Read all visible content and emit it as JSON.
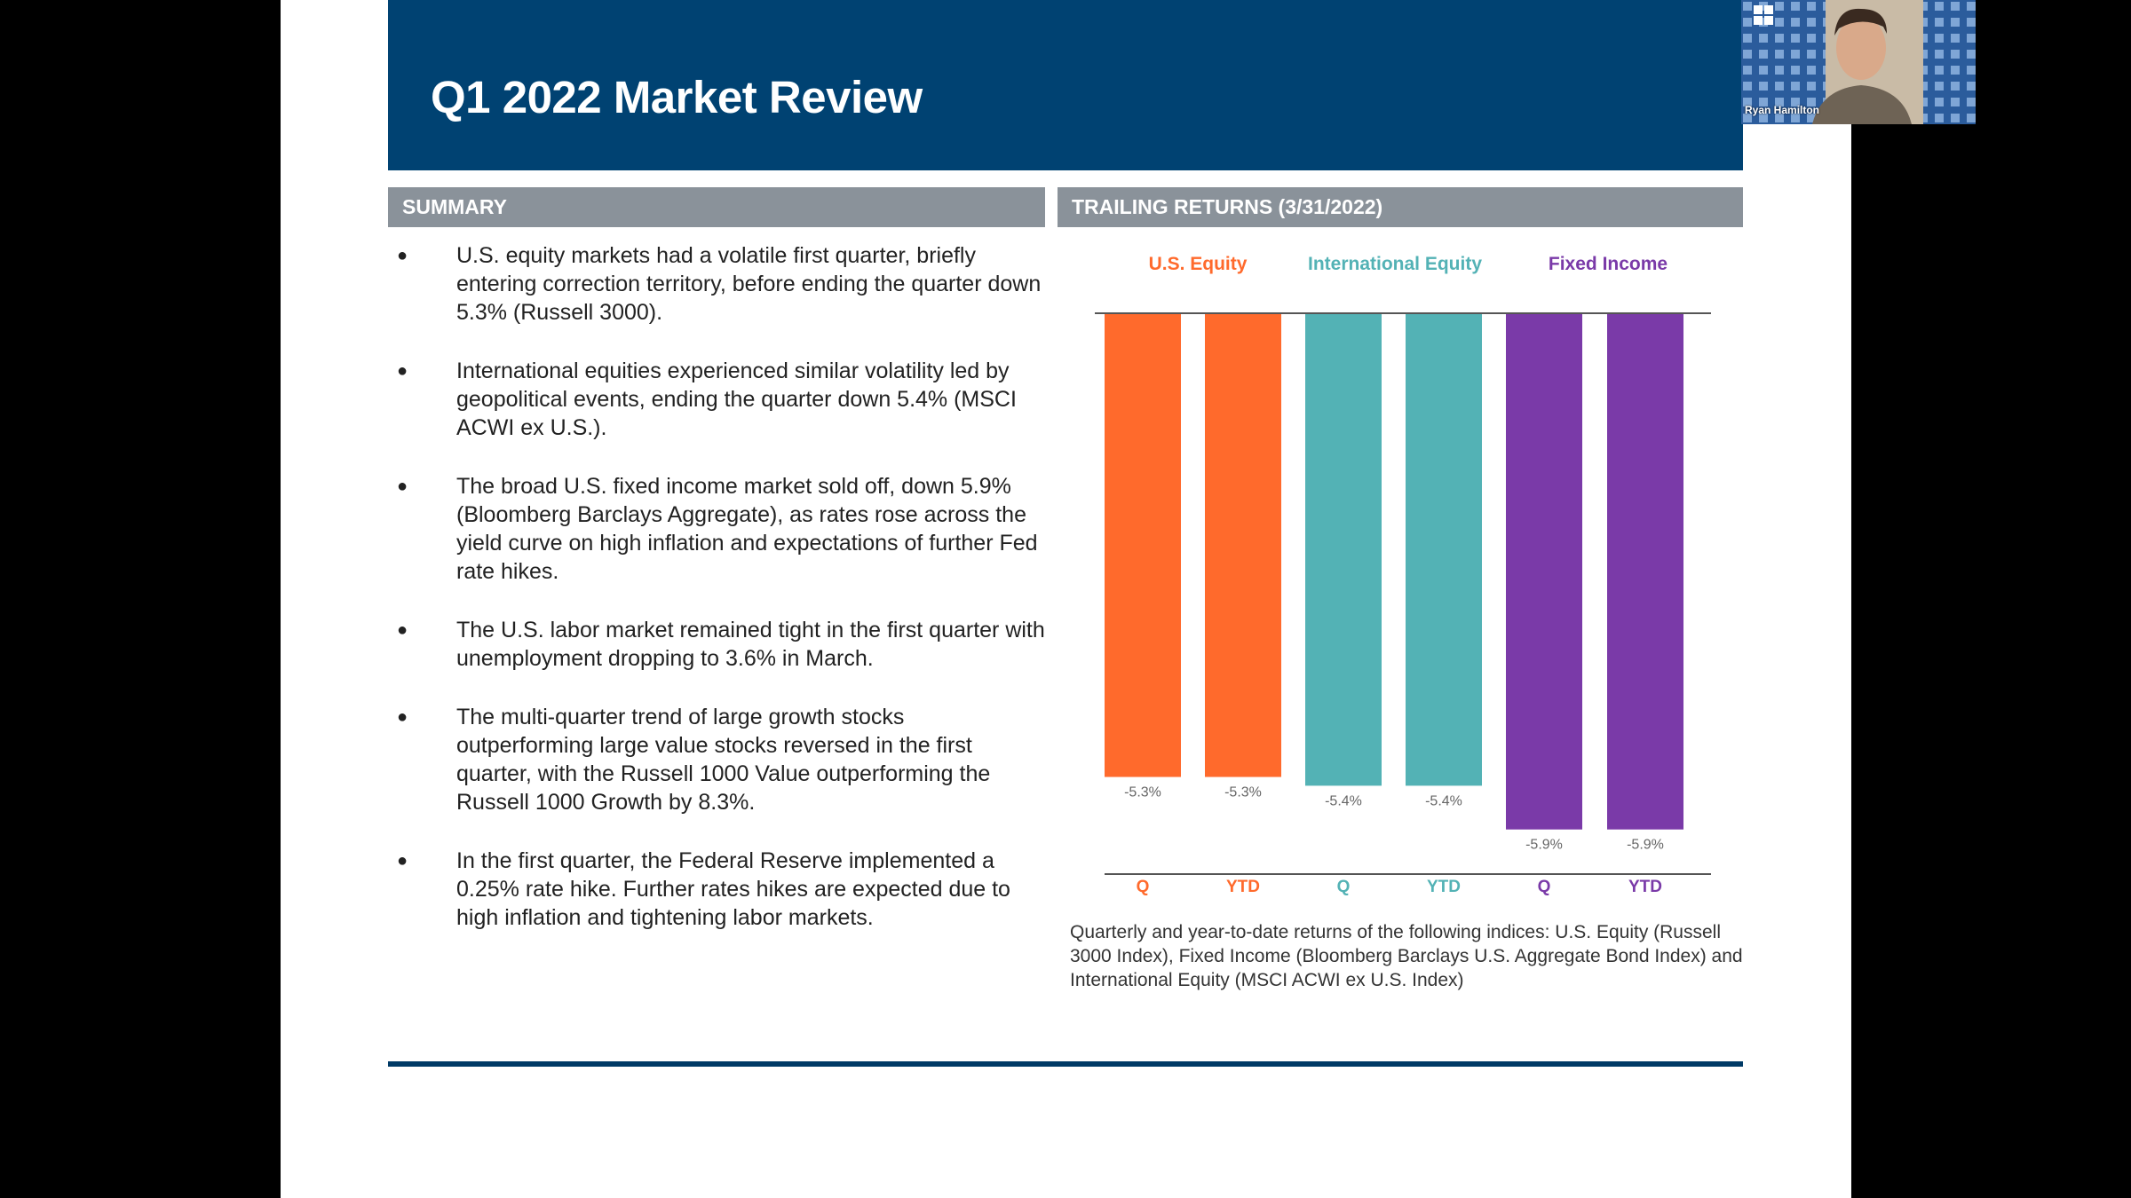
{
  "slide": {
    "title": "Q1 2022 Market Review",
    "summary_header": "SUMMARY",
    "returns_header": "TRAILING RETURNS (3/31/2022)",
    "bullets": [
      "U.S. equity markets had a volatile first quarter, briefly entering correction territory, before ending the quarter down 5.3% (Russell 3000).",
      "International equities experienced similar volatility led by geopolitical events, ending the quarter down 5.4% (MSCI ACWI ex U.S.).",
      "The broad U.S. fixed income market sold off, down 5.9% (Bloomberg Barclays Aggregate), as rates rose across the yield curve on high inflation and expectations of further Fed rate hikes.",
      "The U.S. labor market remained tight in the first quarter with unemployment dropping to 3.6% in March.",
      "The multi-quarter trend of large growth stocks outperforming large value stocks reversed in the first quarter, with the Russell 1000 Value outperforming the Russell 1000 Growth by 8.3%.",
      "In the first quarter, the Federal Reserve implemented a 0.25% rate hike. Further rates hikes are expected due to high inflation and tightening labor markets."
    ],
    "chart_caption": "Quarterly and year-to-date returns of the following indices: U.S. Equity (Russell 3000 Index), Fixed Income (Bloomberg Barclays U.S. Aggregate Bond Index) and International Equity (MSCI ACWI ex U.S. Index)"
  },
  "colors": {
    "banner": "#004272",
    "section_header": "#8a929a",
    "us_equity": "#ff6a2c",
    "intl_equity": "#53b2b5",
    "fixed_income": "#7a3aa8",
    "rule": "#003a66"
  },
  "chart_data": {
    "type": "bar",
    "groups": [
      {
        "name": "U.S. Equity",
        "color": "#ff6a2c",
        "categories": [
          "Q",
          "YTD"
        ],
        "values": [
          -5.3,
          -5.3
        ],
        "labels": [
          "-5.3%",
          "-5.3%"
        ]
      },
      {
        "name": "International Equity",
        "color": "#53b2b5",
        "categories": [
          "Q",
          "YTD"
        ],
        "values": [
          -5.4,
          -5.4
        ],
        "labels": [
          "-5.4%",
          "-5.4%"
        ]
      },
      {
        "name": "Fixed Income",
        "color": "#7a3aa8",
        "categories": [
          "Q",
          "YTD"
        ],
        "values": [
          -5.9,
          -5.9
        ],
        "labels": [
          "-5.9%",
          "-5.9%"
        ]
      }
    ],
    "title": "TRAILING RETURNS (3/31/2022)",
    "ylim": [
      -6.4,
      0
    ],
    "legend": "top",
    "grid": false
  },
  "webcam": {
    "name": "Ryan Hamilton",
    "icon": "grid-menu-icon"
  }
}
